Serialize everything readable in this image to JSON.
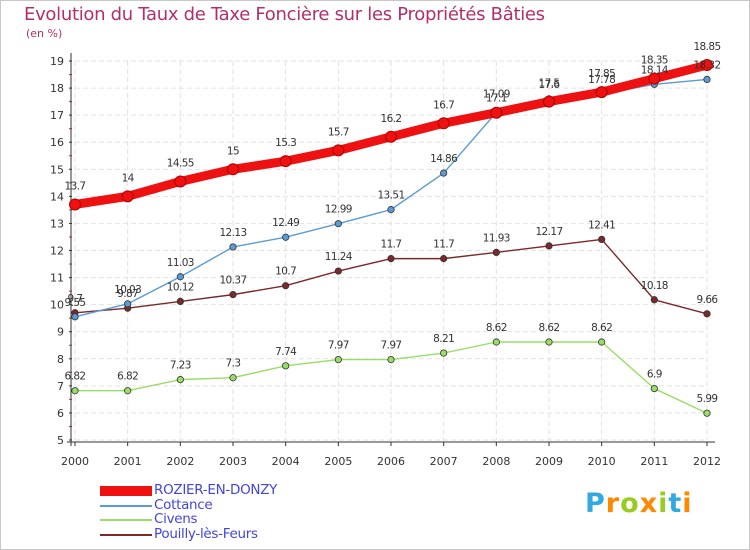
{
  "chart_data": {
    "type": "line",
    "title": "Evolution du Taux de Taxe Foncière sur les Propriétés Bâties",
    "ylabel": "(en %)",
    "xlabel": "",
    "ylim": [
      5,
      19
    ],
    "yticks": [
      "5",
      "6",
      "7",
      "8",
      "9",
      "10",
      "11",
      "12",
      "13",
      "14",
      "15",
      "16",
      "17",
      "18",
      "19"
    ],
    "categories": [
      "2000",
      "2001",
      "2002",
      "2003",
      "2004",
      "2005",
      "2006",
      "2007",
      "2008",
      "2009",
      "2010",
      "2011",
      "2012"
    ],
    "series": [
      {
        "name": "Pouilly-lès-Feurs",
        "color": "#7a2a2a",
        "values": [
          9.7,
          9.87,
          10.12,
          10.37,
          10.7,
          11.24,
          11.7,
          11.7,
          11.93,
          12.17,
          12.41,
          10.18,
          9.66
        ],
        "labels": [
          "9.7",
          "9.87",
          "10.12",
          "10.37",
          "10.7",
          "11.24",
          "11.7",
          "11.7",
          "11.93",
          "12.17",
          "12.41",
          "10.18",
          "9.66"
        ]
      },
      {
        "name": "Civens",
        "color": "#99dd66",
        "values": [
          6.82,
          6.82,
          7.23,
          7.3,
          7.74,
          7.97,
          7.97,
          8.21,
          8.62,
          8.62,
          8.62,
          6.9,
          5.99
        ],
        "labels": [
          "6.82",
          "6.82",
          "7.23",
          "7.3",
          "7.74",
          "7.97",
          "7.97",
          "8.21",
          "8.62",
          "8.62",
          "8.62",
          "6.9",
          "5.99"
        ]
      },
      {
        "name": "Cottance",
        "color": "#5b9bd5",
        "values": [
          9.55,
          10.03,
          11.03,
          12.13,
          12.49,
          12.99,
          13.51,
          14.86,
          17.1,
          17.6,
          17.78,
          18.14,
          18.32
        ],
        "labels": [
          "9.55",
          "10.03",
          "11.03",
          "12.13",
          "12.49",
          "12.99",
          "13.51",
          "14.86",
          "17.1",
          "17.6",
          "17.78",
          "18.14",
          "18.32"
        ]
      },
      {
        "name": "ROZIER-EN-DONZY",
        "color": "#ee1111",
        "values": [
          13.7,
          14,
          14.55,
          15,
          15.3,
          15.7,
          16.2,
          16.7,
          17.09,
          17.5,
          17.85,
          18.35,
          18.85
        ],
        "labels": [
          "13.7",
          "14",
          "14.55",
          "15",
          "15.3",
          "15.7",
          "16.2",
          "16.7",
          "17.09",
          "17.5",
          "17.85",
          "18.35",
          "18.85"
        ]
      }
    ],
    "legend_position": "bottom-left"
  },
  "legend": [
    {
      "name": "ROZIER-EN-DONZY",
      "color": "#ee1111",
      "text_color": "#4444dd",
      "width": 10
    },
    {
      "name": "Cottance",
      "color": "#5b9bd5",
      "text_color": "#4444dd",
      "width": 2
    },
    {
      "name": "Civens",
      "color": "#99dd66",
      "text_color": "#4444dd",
      "width": 2
    },
    {
      "name": "Pouilly-lès-Feurs",
      "color": "#7a2a2a",
      "text_color": "#4444dd",
      "width": 2
    }
  ],
  "logo": {
    "letters": [
      "P",
      "r",
      "o",
      "x",
      "i",
      "t",
      "i"
    ],
    "colors": [
      "#33aadd",
      "#ff8800",
      "#99cc22",
      "#ff8800",
      "#99cc22",
      "#33aadd",
      "#ff8800"
    ]
  }
}
